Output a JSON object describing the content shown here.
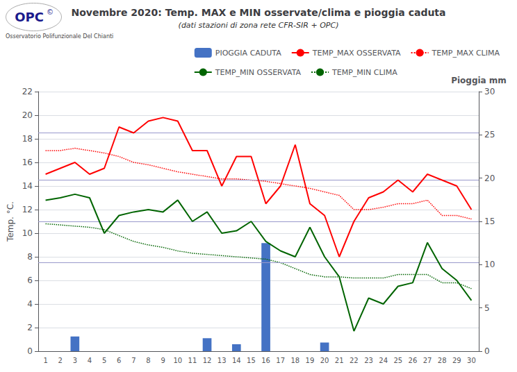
{
  "chart_data": {
    "type": "line",
    "title": "Novembre 2020: Temp. MAX e MIN osservate/clima e pioggia caduta",
    "subtitle": "(dati stazioni di zona rete CFR-SIR + OPC)",
    "y_label": "Temp. °C.",
    "y2_label": "Pioggia mm",
    "annotations": [
      "OPC",
      "©",
      "Osservatorio Polifunzionale Del Chianti"
    ],
    "categories": [
      1,
      2,
      3,
      4,
      5,
      6,
      7,
      8,
      9,
      10,
      11,
      12,
      13,
      14,
      15,
      16,
      17,
      18,
      19,
      20,
      21,
      22,
      23,
      24,
      25,
      26,
      27,
      28,
      29,
      30
    ],
    "series": [
      {
        "name": "PIOGGIA CADUTA",
        "type": "bar",
        "axis": "y2",
        "color": "#4472C4",
        "values": [
          0,
          0,
          1.7,
          0,
          0,
          0,
          0,
          0,
          0,
          0,
          0,
          1.5,
          0,
          0.8,
          0,
          12.5,
          0,
          0,
          0,
          1.0,
          0,
          0,
          0,
          0,
          0,
          0,
          0,
          0,
          0,
          0
        ]
      },
      {
        "name": "TEMP_MAX OSSERVATA",
        "type": "line",
        "color": "#FF0000",
        "line_style": "solid",
        "values": [
          15.0,
          15.5,
          16.0,
          15.0,
          15.5,
          19.0,
          18.5,
          19.5,
          19.8,
          19.5,
          17.0,
          17.0,
          14.0,
          16.5,
          16.5,
          12.5,
          14.0,
          17.5,
          12.5,
          11.5,
          8.0,
          11.0,
          13.0,
          13.5,
          14.5,
          13.5,
          15.0,
          14.5,
          14.0,
          12.0
        ]
      },
      {
        "name": "TEMP_MAX CLIMA",
        "type": "line",
        "color": "#FF0000",
        "line_style": "dotted",
        "values": [
          17.0,
          17.0,
          17.2,
          17.0,
          16.8,
          16.5,
          16.0,
          15.8,
          15.5,
          15.2,
          15.0,
          14.8,
          14.6,
          14.6,
          14.5,
          14.4,
          14.2,
          14.0,
          13.8,
          13.5,
          13.2,
          12.0,
          12.0,
          12.2,
          12.5,
          12.5,
          12.8,
          11.5,
          11.5,
          11.2
        ]
      },
      {
        "name": "TEMP_MIN OSSERVATA",
        "type": "line",
        "color": "#006400",
        "line_style": "solid",
        "values": [
          12.8,
          13.0,
          13.3,
          13.0,
          10.0,
          11.5,
          11.8,
          12.0,
          11.8,
          12.8,
          11.0,
          11.8,
          10.0,
          10.2,
          11.0,
          9.3,
          8.5,
          8.0,
          10.5,
          8.0,
          6.3,
          1.7,
          4.5,
          4.0,
          5.5,
          5.8,
          9.2,
          7.0,
          6.0,
          4.3
        ]
      },
      {
        "name": "TEMP_MIN CLIMA",
        "type": "line",
        "color": "#006400",
        "line_style": "dotted",
        "values": [
          10.8,
          10.7,
          10.6,
          10.5,
          10.3,
          9.8,
          9.3,
          9.0,
          8.8,
          8.5,
          8.3,
          8.2,
          8.1,
          8.0,
          7.9,
          7.8,
          7.5,
          7.0,
          6.5,
          6.3,
          6.3,
          6.2,
          6.2,
          6.2,
          6.5,
          6.5,
          6.5,
          5.8,
          5.8,
          5.3
        ]
      }
    ],
    "reference_lines": {
      "values": [
        7.5,
        11.0,
        14.5,
        18.5
      ],
      "color": "#9999CC"
    },
    "ylim": [
      0,
      22
    ],
    "yticks": [
      0,
      2,
      4,
      6,
      8,
      10,
      12,
      14,
      16,
      18,
      20,
      22
    ],
    "y2lim": [
      0,
      30
    ],
    "y2ticks": [
      0,
      5,
      10,
      15,
      20,
      25,
      30
    ],
    "grid": true,
    "legend": "upper right"
  }
}
